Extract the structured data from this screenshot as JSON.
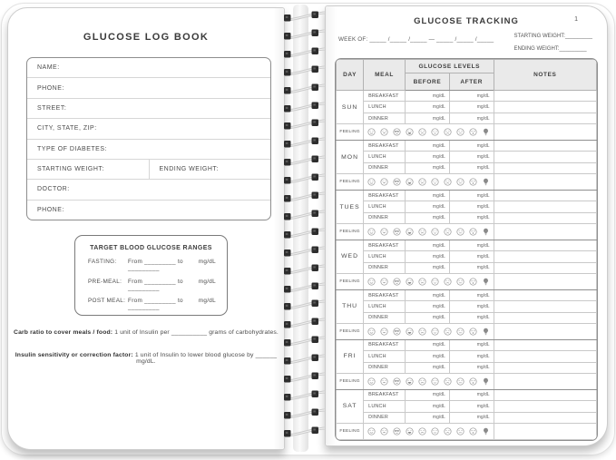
{
  "left_page": {
    "title": "GLUCOSE LOG BOOK",
    "info_fields": [
      {
        "label": "NAME:"
      },
      {
        "label": "PHONE:"
      },
      {
        "label": "STREET:"
      },
      {
        "label": "CITY, STATE, ZIP:"
      },
      {
        "label": "TYPE OF DIABETES:"
      },
      {
        "labels": [
          "STARTING WEIGHT:",
          "ENDING WEIGHT:"
        ]
      },
      {
        "label": "DOCTOR:"
      },
      {
        "label": "PHONE:"
      }
    ],
    "target_box": {
      "title": "TARGET BLOOD GLUCOSE RANGES",
      "rows": [
        {
          "label": "FASTING:",
          "value": "From _________ to _________",
          "unit": "mg/dL"
        },
        {
          "label": "PRE-MEAL:",
          "value": "From _________ to _________",
          "unit": "mg/dL"
        },
        {
          "label": "POST MEAL:",
          "value": "From _________ to _________",
          "unit": "mg/dL"
        }
      ]
    },
    "notes": [
      {
        "bold": "Carb ratio to cover meals / food:",
        "rest": " 1 unit of Insulin per __________ grams of carbohydrates."
      },
      {
        "bold": "Insulin sensitivity or correction factor:",
        "rest": " 1 unit of Insulin to lower blood glucose by ______ mg/dL."
      }
    ]
  },
  "right_page": {
    "title": "GLUCOSE TRACKING",
    "page_number": "1",
    "week_of": "WEEK OF: _____ /_____ /_____  —  _____ /_____ /_____",
    "starting_weight_label": "STARTING WEIGHT:_________",
    "ending_weight_label": "ENDING WEIGHT:_________",
    "table": {
      "headers": {
        "day": "DAY",
        "meal": "MEAL",
        "glucose_levels": "GLUCOSE LEVELS",
        "before": "BEFORE",
        "after": "AFTER",
        "notes": "NOTES"
      },
      "days": [
        "SUN",
        "MON",
        "TUES",
        "WED",
        "THU",
        "FRI",
        "SAT"
      ],
      "meals": [
        "BREAKFAST",
        "LUNCH",
        "DINNER"
      ],
      "unit": "mg/dL",
      "feeling_label": "FEELING",
      "feeling_icons": [
        "smile-icon",
        "grin-icon",
        "cool-icon",
        "laugh-icon",
        "frown-icon",
        "relieved-icon",
        "sad-icon",
        "meh-icon",
        "dizzy-icon",
        "bulb-icon"
      ]
    }
  },
  "colors": {
    "page_bg": "#ffffff",
    "table_header_bg": "#eaeaea",
    "border_strong": "#8f8f8f",
    "border_light": "#d6d6d6",
    "text_primary": "#3e3e3e",
    "text_secondary": "#555555",
    "spiral_dark": "#2d2d2d",
    "spiral_wire": "#cccccc"
  }
}
